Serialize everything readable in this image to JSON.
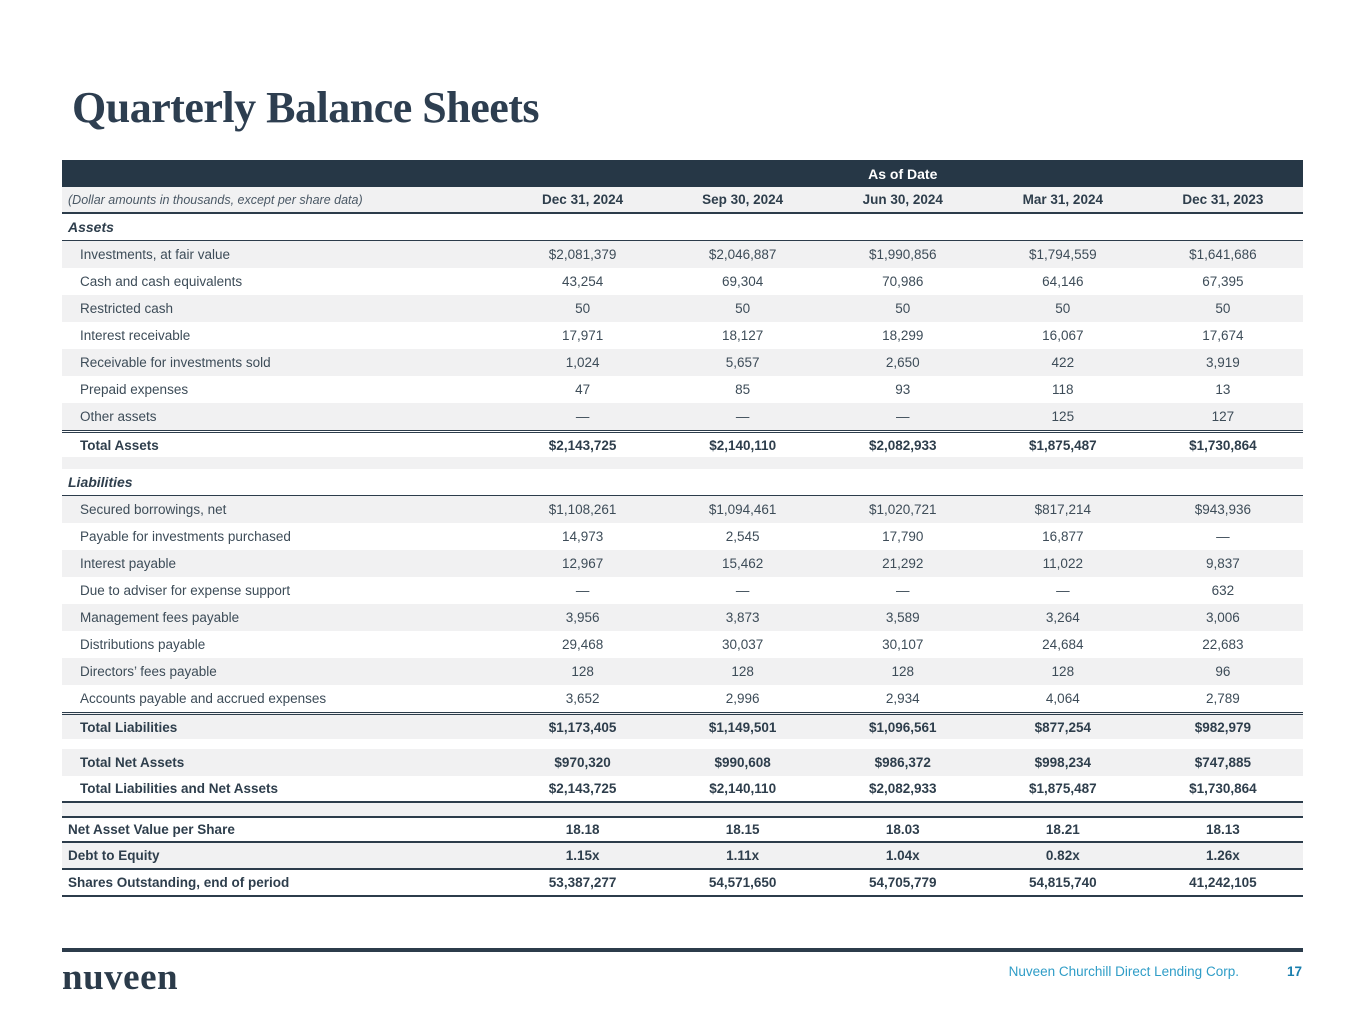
{
  "title": "Quarterly Balance Sheets",
  "table": {
    "banner": "As of Date",
    "note": "(Dollar amounts in thousands, except per share data)",
    "columns": [
      "Dec 31, 2024",
      "Sep 30, 2024",
      "Jun 30, 2024",
      "Mar 31, 2024",
      "Dec 31, 2023"
    ],
    "rows": [
      {
        "type": "section",
        "label": "Assets",
        "values": [
          "",
          "",
          "",
          "",
          ""
        ],
        "rule": "bottom-thin"
      },
      {
        "type": "item",
        "label": "Investments, at fair value",
        "values": [
          "$2,081,379",
          "$2,046,887",
          "$1,990,856",
          "$1,794,559",
          "$1,641,686"
        ]
      },
      {
        "type": "item",
        "label": "Cash and cash equivalents",
        "values": [
          "43,254",
          "69,304",
          "70,986",
          "64,146",
          "67,395"
        ]
      },
      {
        "type": "item",
        "label": "Restricted cash",
        "values": [
          "50",
          "50",
          "50",
          "50",
          "50"
        ]
      },
      {
        "type": "item",
        "label": "Interest receivable",
        "values": [
          "17,971",
          "18,127",
          "18,299",
          "16,067",
          "17,674"
        ]
      },
      {
        "type": "item",
        "label": "Receivable for investments sold",
        "values": [
          "1,024",
          "5,657",
          "2,650",
          "422",
          "3,919"
        ]
      },
      {
        "type": "item",
        "label": "Prepaid expenses",
        "values": [
          "47",
          "85",
          "93",
          "118",
          "13"
        ]
      },
      {
        "type": "item",
        "label": "Other assets",
        "values": [
          "—",
          "—",
          "—",
          "125",
          "127"
        ]
      },
      {
        "type": "total",
        "label": "Total Assets",
        "values": [
          "$2,143,725",
          "$2,140,110",
          "$2,082,933",
          "$1,875,487",
          "$1,730,864"
        ],
        "rule": "top-double"
      },
      {
        "type": "spacer",
        "h": 12
      },
      {
        "type": "section",
        "label": "Liabilities",
        "values": [
          "",
          "",
          "",
          "",
          ""
        ],
        "rule": "bottom-thin"
      },
      {
        "type": "item",
        "label": "Secured borrowings, net",
        "values": [
          "$1,108,261",
          "$1,094,461",
          "$1,020,721",
          "$817,214",
          "$943,936"
        ]
      },
      {
        "type": "item",
        "label": "Payable for investments purchased",
        "values": [
          "14,973",
          "2,545",
          "17,790",
          "16,877",
          "—"
        ]
      },
      {
        "type": "item",
        "label": "Interest payable",
        "values": [
          "12,967",
          "15,462",
          "21,292",
          "11,022",
          "9,837"
        ]
      },
      {
        "type": "item",
        "label": "Due to adviser for expense support",
        "values": [
          "—",
          "—",
          "—",
          "—",
          "632"
        ]
      },
      {
        "type": "item",
        "label": "Management fees payable",
        "values": [
          "3,956",
          "3,873",
          "3,589",
          "3,264",
          "3,006"
        ]
      },
      {
        "type": "item",
        "label": "Distributions payable",
        "values": [
          "29,468",
          "30,037",
          "30,107",
          "24,684",
          "22,683"
        ]
      },
      {
        "type": "item",
        "label": "Directors’ fees payable",
        "values": [
          "128",
          "128",
          "128",
          "128",
          "96"
        ]
      },
      {
        "type": "item",
        "label": "Accounts payable and accrued expenses",
        "values": [
          "3,652",
          "2,996",
          "2,934",
          "4,064",
          "2,789"
        ]
      },
      {
        "type": "total",
        "label": "Total Liabilities",
        "values": [
          "$1,173,405",
          "$1,149,501",
          "$1,096,561",
          "$877,254",
          "$982,979"
        ],
        "rule": "top-double"
      },
      {
        "type": "spacer",
        "h": 10
      },
      {
        "type": "total",
        "label": "Total Net Assets",
        "values": [
          "$970,320",
          "$990,608",
          "$986,372",
          "$998,234",
          "$747,885"
        ]
      },
      {
        "type": "total",
        "label": "Total Liabilities and Net Assets",
        "values": [
          "$2,143,725",
          "$2,140,110",
          "$2,082,933",
          "$1,875,487",
          "$1,730,864"
        ],
        "rule": "bottom-thick"
      },
      {
        "type": "spacer",
        "h": 13
      },
      {
        "type": "metric",
        "label": "Net Asset Value per Share",
        "values": [
          "18.18",
          "18.15",
          "18.03",
          "18.21",
          "18.13"
        ],
        "rule": "top-thick bottom-thick"
      },
      {
        "type": "metric",
        "label": "Debt to Equity",
        "values": [
          "1.15x",
          "1.11x",
          "1.04x",
          "0.82x",
          "1.26x"
        ],
        "rule": "bottom-thick"
      },
      {
        "type": "metric",
        "label": "Shares Outstanding, end of period",
        "values": [
          "53,387,277",
          "54,571,650",
          "54,705,779",
          "54,815,740",
          "41,242,105"
        ],
        "rule": "bottom-thick"
      }
    ]
  },
  "footer": {
    "logo": "nuveen",
    "company": "Nuveen Churchill Direct Lending Corp.",
    "page_number": "17"
  },
  "colors": {
    "navy": "#263746",
    "rule_dark": "#2c3c4b",
    "stripe": "#f1f1f2",
    "text": "#3d4c58",
    "teal": "#2f9dc7",
    "page_num_blue": "#1a7fae"
  }
}
